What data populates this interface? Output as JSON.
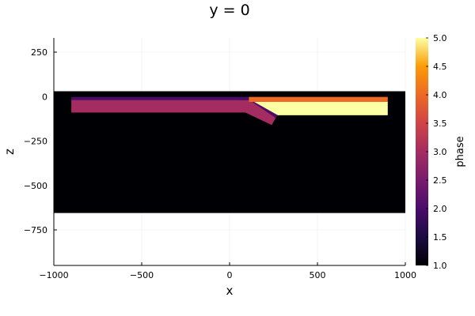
{
  "chart_data": {
    "type": "heatmap",
    "title": "y = 0",
    "xlabel": "x",
    "ylabel": "z",
    "xlim": [
      -1000,
      1000
    ],
    "ylim": [
      -950,
      330
    ],
    "xticks": [
      -1000,
      -500,
      0,
      500,
      1000
    ],
    "xtick_labels": [
      "−1000",
      "−500",
      "0",
      "500",
      "1000"
    ],
    "yticks": [
      250,
      0,
      -250,
      -500,
      -750
    ],
    "ytick_labels": [
      "250",
      "0",
      "−250",
      "−500",
      "−750"
    ],
    "grid": true,
    "colorbar": {
      "label": "phase",
      "range": [
        1.0,
        5.0
      ],
      "ticks": [
        1.0,
        1.5,
        2.0,
        2.5,
        3.0,
        3.5,
        4.0,
        4.5,
        5.0
      ],
      "tick_labels": [
        "1.0",
        "1.5",
        "2.0",
        "2.5",
        "3.0",
        "3.5",
        "4.0",
        "4.5",
        "5.0"
      ],
      "colormap": "inferno"
    },
    "regions": [
      {
        "phase": 1,
        "shape": "rect",
        "x": [
          -1000,
          1000
        ],
        "z": [
          -655,
          30
        ]
      },
      {
        "phase": 3,
        "shape": "rect",
        "x": [
          -900,
          50
        ],
        "z": [
          -90,
          -20
        ]
      },
      {
        "phase": 2,
        "shape": "poly",
        "x": [
          -900,
          100,
          120,
          275,
          262,
          115,
          100,
          -900
        ],
        "z": [
          -2,
          -2,
          -5,
          -105,
          -120,
          -20,
          -20,
          -20
        ]
      },
      {
        "phase": 3,
        "shape": "poly",
        "x": [
          -900,
          100,
          115,
          262,
          240,
          90,
          50,
          -900
        ],
        "z": [
          -20,
          -20,
          -20,
          -120,
          -160,
          -90,
          -90,
          -90
        ]
      },
      {
        "phase": 4,
        "shape": "rect",
        "x": [
          110,
          900
        ],
        "z": [
          -30,
          -2
        ]
      },
      {
        "phase": 5,
        "shape": "poly",
        "x": [
          140,
          900,
          900,
          275
        ],
        "z": [
          -30,
          -30,
          -105,
          -105
        ]
      }
    ]
  }
}
